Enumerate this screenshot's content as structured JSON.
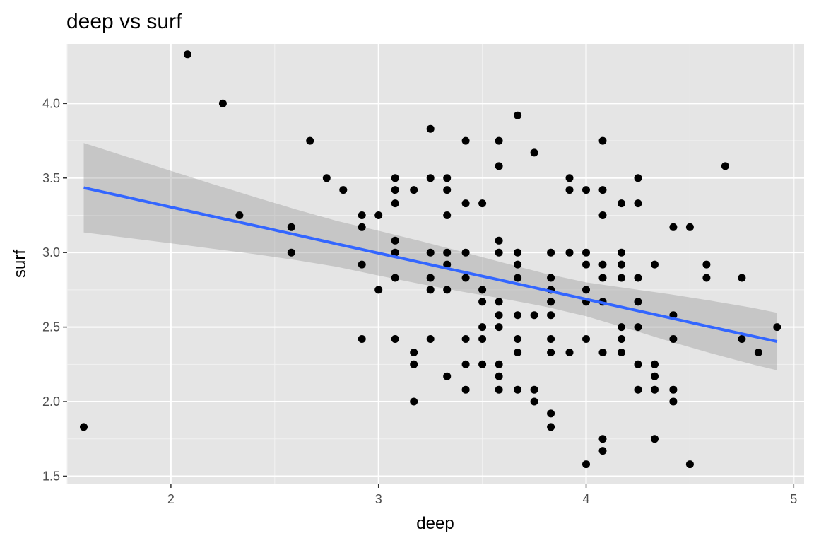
{
  "chart_data": {
    "type": "scatter",
    "title": "deep vs surf",
    "xlabel": "deep",
    "ylabel": "surf",
    "xlim": [
      1.5,
      5.05
    ],
    "ylim": [
      1.45,
      4.4
    ],
    "x_ticks": [
      2,
      3,
      4,
      5
    ],
    "y_ticks": [
      1.5,
      2.0,
      2.5,
      3.0,
      3.5,
      4.0
    ],
    "x_tick_labels": [
      "2",
      "3",
      "4",
      "5"
    ],
    "y_tick_labels": [
      "1.5",
      "2.0",
      "2.5",
      "3.0",
      "3.5",
      "4.0"
    ],
    "grid": true,
    "background": "#e5e5e5",
    "point_color": "#000000",
    "trend_color": "#3366ff",
    "band_color": "#999999",
    "points": [
      [
        1.58,
        1.83
      ],
      [
        2.08,
        4.33
      ],
      [
        2.25,
        4.0
      ],
      [
        2.33,
        3.25
      ],
      [
        2.58,
        3.17
      ],
      [
        2.58,
        3.0
      ],
      [
        2.67,
        3.75
      ],
      [
        2.75,
        3.5
      ],
      [
        2.83,
        3.42
      ],
      [
        2.92,
        3.25
      ],
      [
        2.92,
        3.17
      ],
      [
        2.92,
        2.92
      ],
      [
        2.92,
        2.42
      ],
      [
        3.0,
        3.25
      ],
      [
        3.0,
        2.75
      ],
      [
        3.08,
        3.5
      ],
      [
        3.08,
        3.42
      ],
      [
        3.08,
        3.33
      ],
      [
        3.08,
        3.08
      ],
      [
        3.08,
        3.0
      ],
      [
        3.08,
        2.83
      ],
      [
        3.08,
        2.42
      ],
      [
        3.17,
        3.42
      ],
      [
        3.17,
        2.33
      ],
      [
        3.17,
        2.25
      ],
      [
        3.17,
        2.0
      ],
      [
        3.25,
        3.83
      ],
      [
        3.25,
        3.5
      ],
      [
        3.25,
        3.0
      ],
      [
        3.25,
        2.83
      ],
      [
        3.25,
        2.75
      ],
      [
        3.25,
        2.42
      ],
      [
        3.33,
        3.5
      ],
      [
        3.33,
        3.42
      ],
      [
        3.33,
        3.25
      ],
      [
        3.33,
        3.0
      ],
      [
        3.33,
        2.92
      ],
      [
        3.33,
        2.75
      ],
      [
        3.33,
        2.17
      ],
      [
        3.42,
        3.75
      ],
      [
        3.42,
        3.33
      ],
      [
        3.42,
        3.0
      ],
      [
        3.42,
        2.83
      ],
      [
        3.42,
        2.42
      ],
      [
        3.42,
        2.25
      ],
      [
        3.42,
        2.08
      ],
      [
        3.5,
        3.33
      ],
      [
        3.5,
        2.75
      ],
      [
        3.5,
        2.67
      ],
      [
        3.5,
        2.5
      ],
      [
        3.5,
        2.42
      ],
      [
        3.5,
        2.25
      ],
      [
        3.58,
        3.75
      ],
      [
        3.58,
        3.58
      ],
      [
        3.58,
        3.08
      ],
      [
        3.58,
        3.0
      ],
      [
        3.58,
        2.67
      ],
      [
        3.58,
        2.58
      ],
      [
        3.58,
        2.5
      ],
      [
        3.58,
        2.25
      ],
      [
        3.58,
        2.17
      ],
      [
        3.58,
        2.08
      ],
      [
        3.67,
        3.92
      ],
      [
        3.67,
        3.0
      ],
      [
        3.67,
        2.92
      ],
      [
        3.67,
        2.83
      ],
      [
        3.67,
        2.58
      ],
      [
        3.67,
        2.42
      ],
      [
        3.67,
        2.33
      ],
      [
        3.67,
        2.08
      ],
      [
        3.75,
        3.67
      ],
      [
        3.75,
        2.58
      ],
      [
        3.75,
        2.08
      ],
      [
        3.75,
        2.0
      ],
      [
        3.83,
        3.0
      ],
      [
        3.83,
        2.83
      ],
      [
        3.83,
        2.75
      ],
      [
        3.83,
        2.67
      ],
      [
        3.83,
        2.58
      ],
      [
        3.83,
        2.42
      ],
      [
        3.83,
        2.33
      ],
      [
        3.83,
        1.92
      ],
      [
        3.83,
        1.83
      ],
      [
        3.92,
        3.5
      ],
      [
        3.92,
        3.42
      ],
      [
        3.92,
        3.0
      ],
      [
        3.92,
        2.33
      ],
      [
        4.0,
        3.42
      ],
      [
        4.0,
        3.0
      ],
      [
        4.0,
        2.92
      ],
      [
        4.0,
        2.75
      ],
      [
        4.0,
        2.67
      ],
      [
        4.0,
        2.42
      ],
      [
        4.0,
        1.58
      ],
      [
        4.08,
        3.75
      ],
      [
        4.08,
        3.42
      ],
      [
        4.08,
        3.25
      ],
      [
        4.08,
        2.92
      ],
      [
        4.08,
        2.83
      ],
      [
        4.08,
        2.67
      ],
      [
        4.08,
        2.33
      ],
      [
        4.08,
        1.75
      ],
      [
        4.08,
        1.67
      ],
      [
        4.17,
        3.33
      ],
      [
        4.17,
        3.0
      ],
      [
        4.17,
        2.92
      ],
      [
        4.17,
        2.83
      ],
      [
        4.17,
        2.5
      ],
      [
        4.17,
        2.42
      ],
      [
        4.17,
        2.33
      ],
      [
        4.25,
        3.5
      ],
      [
        4.25,
        3.33
      ],
      [
        4.25,
        2.83
      ],
      [
        4.25,
        2.67
      ],
      [
        4.25,
        2.5
      ],
      [
        4.25,
        2.25
      ],
      [
        4.25,
        2.08
      ],
      [
        4.33,
        2.92
      ],
      [
        4.33,
        2.25
      ],
      [
        4.33,
        2.17
      ],
      [
        4.33,
        2.08
      ],
      [
        4.33,
        1.75
      ],
      [
        4.42,
        3.17
      ],
      [
        4.42,
        2.58
      ],
      [
        4.42,
        2.42
      ],
      [
        4.42,
        2.08
      ],
      [
        4.42,
        2.0
      ],
      [
        4.5,
        3.17
      ],
      [
        4.5,
        1.58
      ],
      [
        4.58,
        2.92
      ],
      [
        4.58,
        2.83
      ],
      [
        4.67,
        3.58
      ],
      [
        4.75,
        2.83
      ],
      [
        4.75,
        2.42
      ],
      [
        4.83,
        2.33
      ],
      [
        4.92,
        2.5
      ]
    ],
    "trend": {
      "x": [
        1.58,
        1.8,
        2.0,
        2.2,
        2.4,
        2.6,
        2.8,
        3.0,
        3.2,
        3.4,
        3.6,
        3.8,
        4.0,
        4.2,
        4.4,
        4.6,
        4.8,
        4.92
      ],
      "y": [
        3.435,
        3.367,
        3.305,
        3.243,
        3.182,
        3.12,
        3.058,
        2.996,
        2.934,
        2.872,
        2.811,
        2.749,
        2.687,
        2.625,
        2.563,
        2.501,
        2.44,
        2.403
      ],
      "lower": [
        3.135,
        3.097,
        3.062,
        3.026,
        2.99,
        2.95,
        2.904,
        2.846,
        2.79,
        2.738,
        2.69,
        2.638,
        2.573,
        2.49,
        2.405,
        2.325,
        2.25,
        2.21
      ],
      "upper": [
        3.735,
        3.637,
        3.548,
        3.46,
        3.374,
        3.29,
        3.212,
        3.146,
        3.078,
        3.006,
        2.932,
        2.86,
        2.8,
        2.76,
        2.721,
        2.677,
        2.63,
        2.596
      ]
    }
  }
}
